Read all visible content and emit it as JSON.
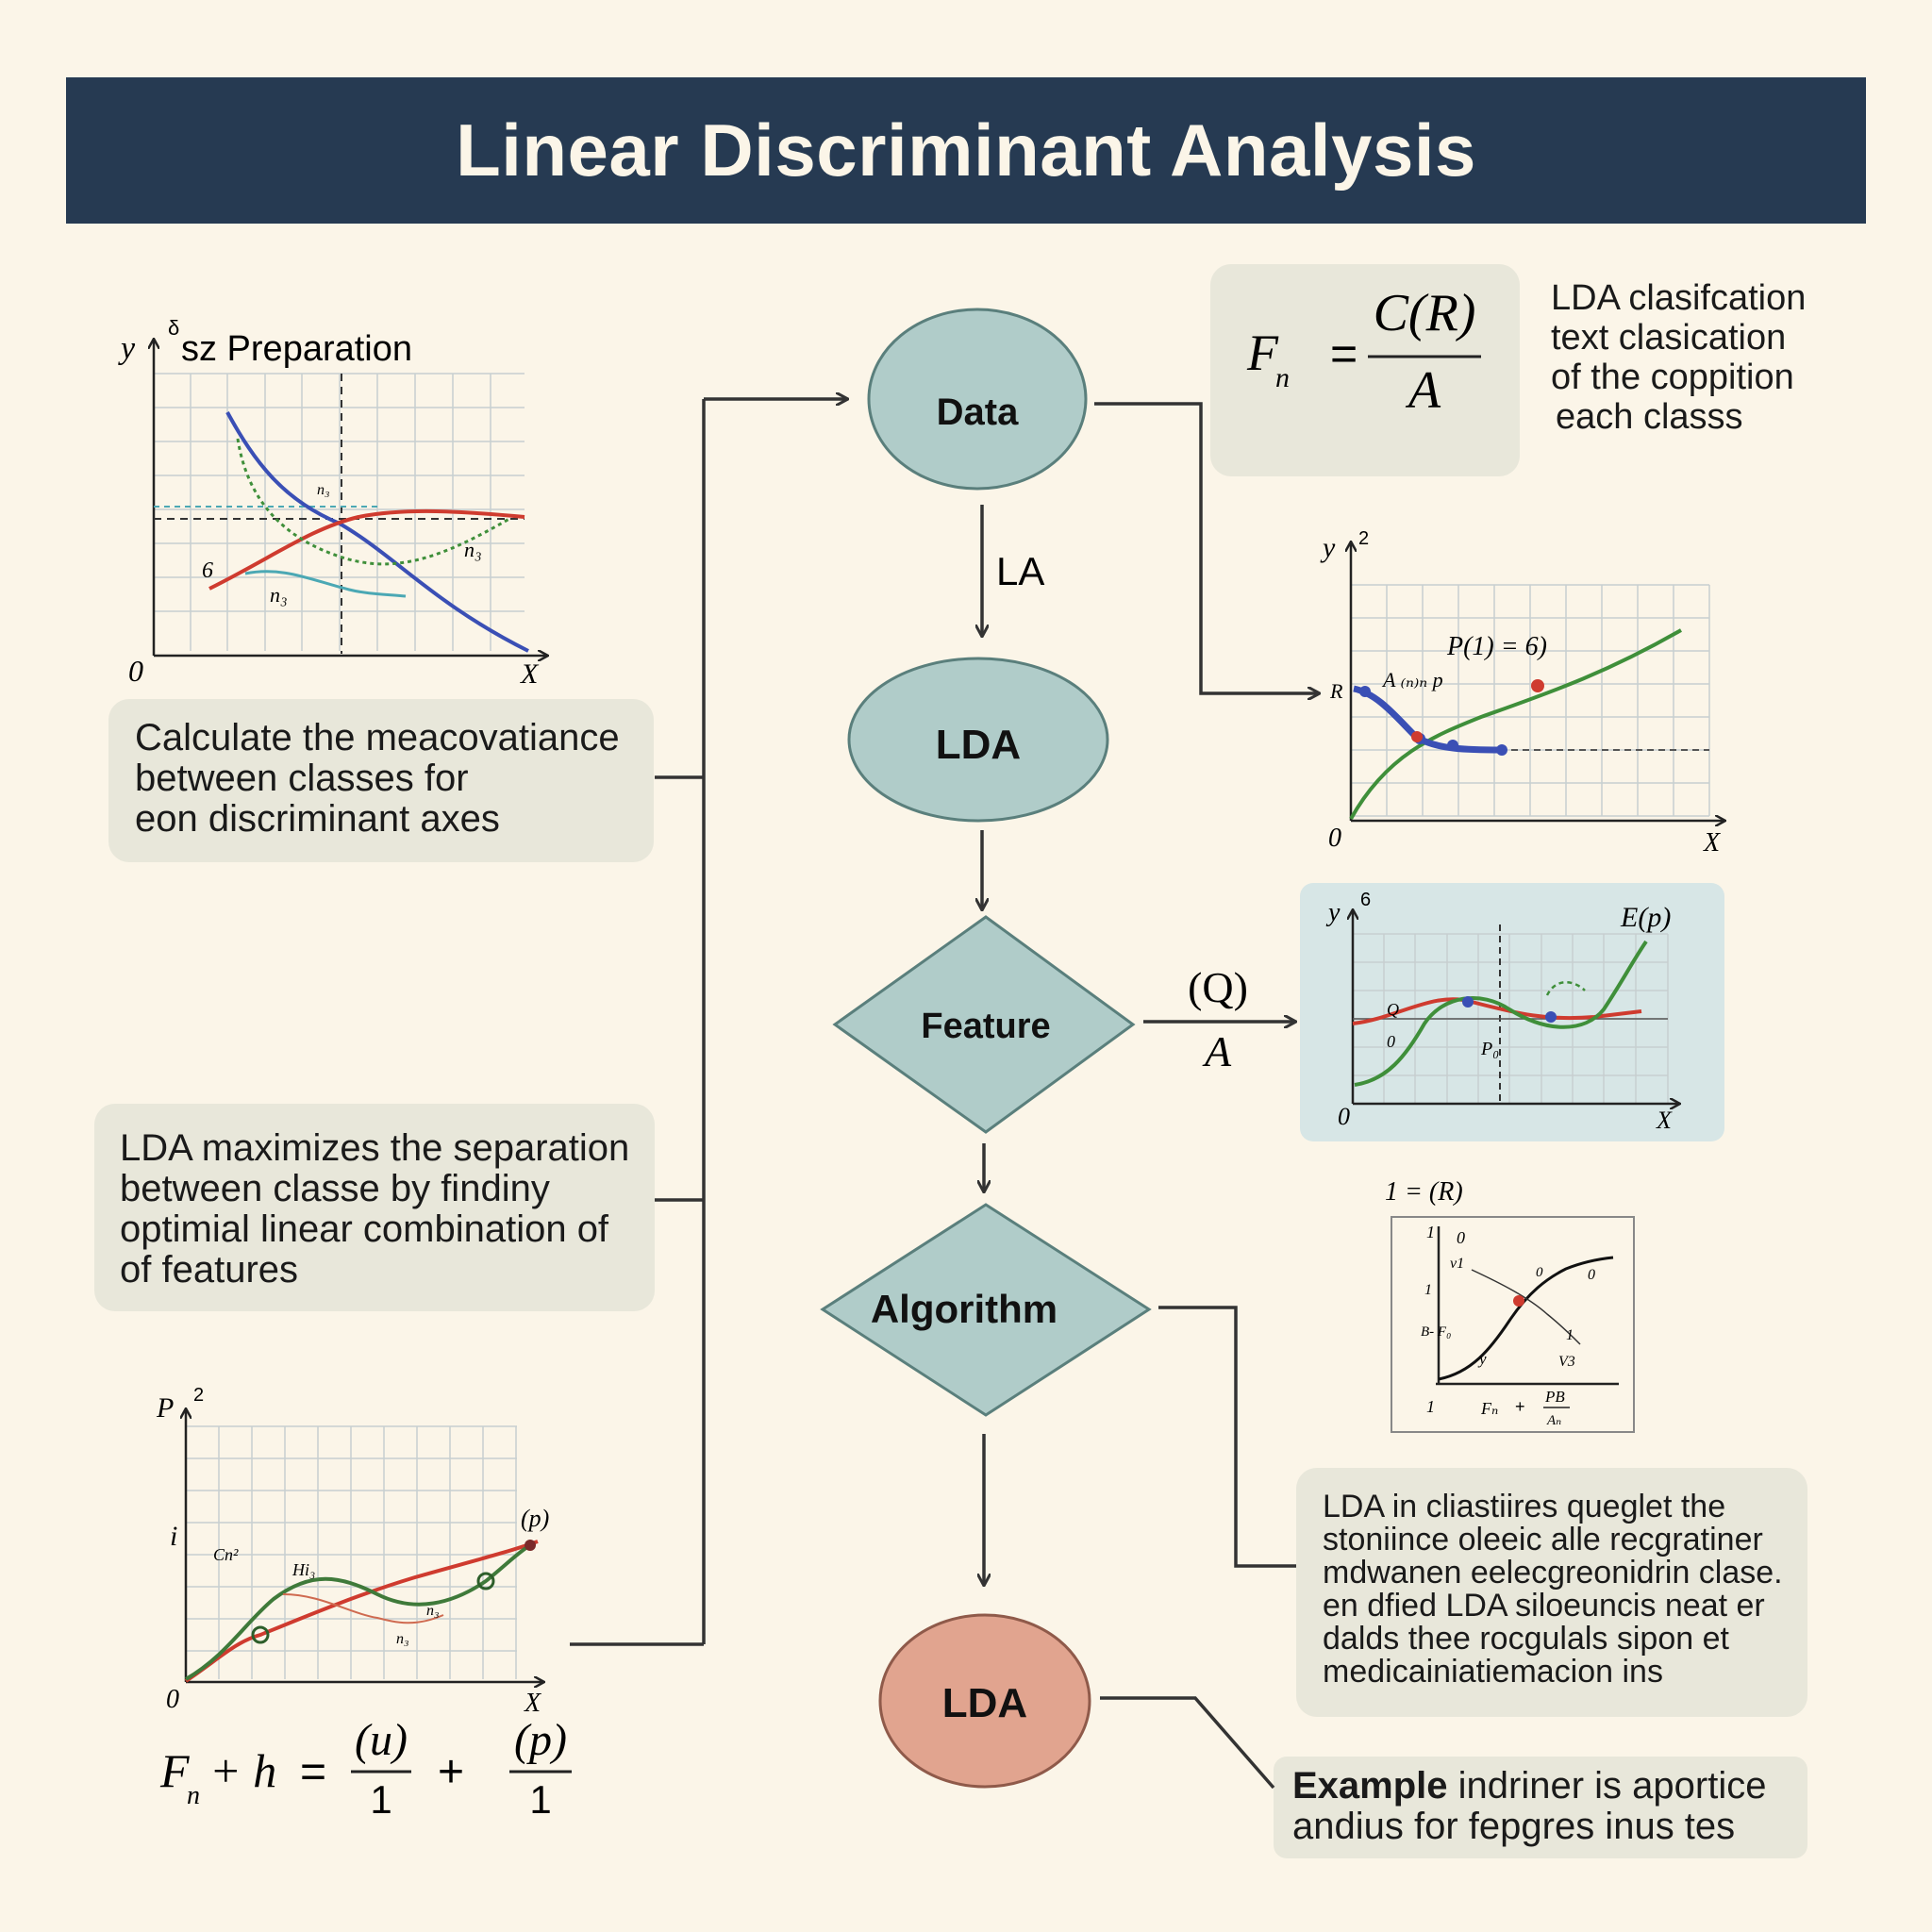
{
  "title": "Linear Discriminant Analysis",
  "nodes": {
    "data": "Data",
    "edge_la": "LA",
    "lda_top": "LDA",
    "feature": "Feature",
    "algorithm": "Algorithm",
    "lda_bottom": "LDA"
  },
  "formula_box": {
    "lhs": "F",
    "lhs_sub": "n",
    "numerator": "C(R)",
    "denominator": "A"
  },
  "formula_caption": [
    "LDA clasifcation",
    "text clasication",
    "of the coppition",
    "each classs"
  ],
  "feature_edge": {
    "top": "(Q)",
    "bottom": "A"
  },
  "left_notes": {
    "note1": [
      "Calculate the meacovatiance",
      "between classes for",
      "eon discriminant axes"
    ],
    "note2": [
      "LDA maximizes the separation",
      "between classe by findiny",
      "optimial linear combination of",
      "of features"
    ]
  },
  "right_notes": {
    "note1": [
      "LDA in cliastiires queglet the",
      "stoniince oleeic alle recgratiner",
      "mdwanen eelecgreonidrin clase.",
      "en dfied LDA siloeuncis neat er",
      "dalds thee rocgulals sipon et",
      "medicainiatiemacion ins"
    ],
    "example_bold": "Example",
    "example_rest_1": " indriner is aportice",
    "example_rest_2": "andius for fepgres inus tes"
  },
  "plot_prep": {
    "y_label": "y",
    "y_sup": "δ",
    "title": "sz Preparation",
    "origin": "0",
    "x_label": "X",
    "annotations": [
      "6",
      "n₃",
      "n₃",
      "n₃"
    ]
  },
  "plot_right1": {
    "y_label": "y",
    "y_sup": "2",
    "eq": "P(1) = 6)",
    "anno": "A ₍ₙ₎ₙ p",
    "r_label": "R",
    "origin": "0",
    "x_label": "X"
  },
  "plot_right2": {
    "y_label": "y",
    "y_sup": "6",
    "corner": "E(p)",
    "a1": "Q",
    "a2": "0",
    "a3": "P₀",
    "origin": "0",
    "x_label": "X"
  },
  "plot_right3": {
    "header": "1 = (R)",
    "labels": [
      "1",
      "0",
      "v1",
      "0",
      "1",
      "B- F₀",
      "y",
      "0",
      "1",
      "V3",
      "1",
      "Fₙ",
      "+",
      "PB",
      "Aₙ"
    ]
  },
  "plot_bottom": {
    "y_label": "P",
    "y_sup": "2",
    "i_label": "i",
    "p_label": "(p)",
    "a1": "Cn²",
    "a2": "Hi₃",
    "a3": "n₃",
    "a4": "n₃",
    "origin": "0",
    "x_label": "X"
  },
  "bottom_formula": {
    "lhs": "F",
    "lhs_sub": "n",
    "plus_term": "+ h",
    "num1": "(u)",
    "den1": "1",
    "plus": "+",
    "num2": "(p)",
    "den2": "1"
  },
  "colors": {
    "title_bg": "#263a52",
    "node_teal": "#b0ccc9",
    "node_salmon": "#e1a48f",
    "card": "#e8e7da",
    "plot_blue_bg": "#d7e6e6",
    "blue": "#3a4fb5",
    "red": "#cf3b2f",
    "green": "#3f8f3a"
  }
}
